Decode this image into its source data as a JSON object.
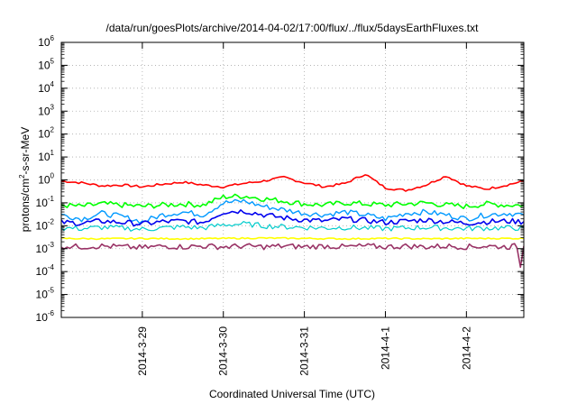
{
  "chart_data": {
    "type": "line",
    "title": "/data/run/goesPlots/archive/2014-04-02/17:00/flux/../flux/5daysEarthFluxes.txt",
    "xlabel": "Coordinated Universal Time (UTC)",
    "ylabel_parts": {
      "a": "protons/cm",
      "exp": "2",
      "b": "-s-sr-MeV"
    },
    "yscale": "log",
    "ylim": [
      1e-06,
      1000000.0
    ],
    "y_ticks": [
      {
        "base": "10",
        "exp": "-6",
        "value": 1e-06
      },
      {
        "base": "10",
        "exp": "-5",
        "value": 1e-05
      },
      {
        "base": "10",
        "exp": "-4",
        "value": 0.0001
      },
      {
        "base": "10",
        "exp": "-3",
        "value": 0.001
      },
      {
        "base": "10",
        "exp": "-2",
        "value": 0.01
      },
      {
        "base": "10",
        "exp": "-1",
        "value": 0.1
      },
      {
        "base": "10",
        "exp": "0",
        "value": 1
      },
      {
        "base": "10",
        "exp": "1",
        "value": 10
      },
      {
        "base": "10",
        "exp": "2",
        "value": 100
      },
      {
        "base": "10",
        "exp": "3",
        "value": 1000
      },
      {
        "base": "10",
        "exp": "4",
        "value": 10000
      },
      {
        "base": "10",
        "exp": "5",
        "value": 100000
      },
      {
        "base": "10",
        "exp": "6",
        "value": 1000000
      }
    ],
    "xlim": [
      "2014-03-28 00:00",
      "2014-04-02 17:00"
    ],
    "x_ticks": [
      {
        "label": "2014-3-29",
        "value": "2014-03-29 00:00"
      },
      {
        "label": "2014-3-30",
        "value": "2014-03-30 00:00"
      },
      {
        "label": "2014-3-31",
        "value": "2014-03-31 00:00"
      },
      {
        "label": "2014-4-1",
        "value": "2014-04-01 00:00"
      },
      {
        "label": "2014-4-2",
        "value": "2014-04-02 00:00"
      }
    ],
    "grid": true,
    "series": [
      {
        "color": "#ff0000",
        "width": 1.6,
        "points": [
          [
            "2014-03-28 00:00",
            0.9
          ],
          [
            "2014-03-28 06:00",
            0.75
          ],
          [
            "2014-03-28 12:00",
            0.55
          ],
          [
            "2014-03-28 18:00",
            0.6
          ],
          [
            "2014-03-29 00:00",
            0.5
          ],
          [
            "2014-03-29 06:00",
            0.65
          ],
          [
            "2014-03-29 12:00",
            0.8
          ],
          [
            "2014-03-29 18:00",
            0.6
          ],
          [
            "2014-03-30 00:00",
            0.5
          ],
          [
            "2014-03-30 06:00",
            0.7
          ],
          [
            "2014-03-30 12:00",
            0.9
          ],
          [
            "2014-03-30 18:00",
            1.3
          ],
          [
            "2014-03-31 00:00",
            0.75
          ],
          [
            "2014-03-31 06:00",
            0.5
          ],
          [
            "2014-03-31 12:00",
            0.7
          ],
          [
            "2014-03-31 18:00",
            1.8
          ],
          [
            "2014-04-01 00:00",
            0.45
          ],
          [
            "2014-04-01 06:00",
            0.35
          ],
          [
            "2014-04-01 12:00",
            0.6
          ],
          [
            "2014-04-01 18:00",
            1.5
          ],
          [
            "2014-04-02 00:00",
            0.55
          ],
          [
            "2014-04-02 06:00",
            0.4
          ],
          [
            "2014-04-02 12:00",
            0.6
          ],
          [
            "2014-04-02 17:00",
            0.9
          ]
        ]
      },
      {
        "color": "#00ff00",
        "width": 1.6,
        "points": [
          [
            "2014-03-28 00:00",
            0.08
          ],
          [
            "2014-03-28 06:00",
            0.07
          ],
          [
            "2014-03-28 12:00",
            0.09
          ],
          [
            "2014-03-28 18:00",
            0.08
          ],
          [
            "2014-03-29 00:00",
            0.07
          ],
          [
            "2014-03-29 06:00",
            0.08
          ],
          [
            "2014-03-29 12:00",
            0.09
          ],
          [
            "2014-03-29 18:00",
            0.08
          ],
          [
            "2014-03-30 00:00",
            0.18
          ],
          [
            "2014-03-30 06:00",
            0.2
          ],
          [
            "2014-03-30 12:00",
            0.15
          ],
          [
            "2014-03-30 18:00",
            0.12
          ],
          [
            "2014-03-31 00:00",
            0.09
          ],
          [
            "2014-03-31 06:00",
            0.08
          ],
          [
            "2014-03-31 12:00",
            0.1
          ],
          [
            "2014-03-31 18:00",
            0.09
          ],
          [
            "2014-04-01 00:00",
            0.08
          ],
          [
            "2014-04-01 06:00",
            0.09
          ],
          [
            "2014-04-01 12:00",
            0.1
          ],
          [
            "2014-04-01 18:00",
            0.08
          ],
          [
            "2014-04-02 00:00",
            0.07
          ],
          [
            "2014-04-02 06:00",
            0.09
          ],
          [
            "2014-04-02 12:00",
            0.08
          ],
          [
            "2014-04-02 17:00",
            0.08
          ]
        ]
      },
      {
        "color": "#0099ff",
        "width": 1.4,
        "points": [
          [
            "2014-03-28 00:00",
            0.03
          ],
          [
            "2014-03-28 06:00",
            0.02
          ],
          [
            "2014-03-28 12:00",
            0.035
          ],
          [
            "2014-03-28 18:00",
            0.025
          ],
          [
            "2014-03-29 00:00",
            0.015
          ],
          [
            "2014-03-29 06:00",
            0.03
          ],
          [
            "2014-03-29 12:00",
            0.04
          ],
          [
            "2014-03-29 18:00",
            0.03
          ],
          [
            "2014-03-30 00:00",
            0.1
          ],
          [
            "2014-03-30 06:00",
            0.12
          ],
          [
            "2014-03-30 12:00",
            0.07
          ],
          [
            "2014-03-30 18:00",
            0.05
          ],
          [
            "2014-03-31 00:00",
            0.035
          ],
          [
            "2014-03-31 06:00",
            0.03
          ],
          [
            "2014-03-31 12:00",
            0.04
          ],
          [
            "2014-03-31 18:00",
            0.03
          ],
          [
            "2014-04-01 00:00",
            0.02
          ],
          [
            "2014-04-01 06:00",
            0.035
          ],
          [
            "2014-04-01 12:00",
            0.04
          ],
          [
            "2014-04-01 18:00",
            0.03
          ],
          [
            "2014-04-02 00:00",
            0.02
          ],
          [
            "2014-04-02 06:00",
            0.03
          ],
          [
            "2014-04-02 12:00",
            0.035
          ],
          [
            "2014-04-02 17:00",
            0.03
          ]
        ]
      },
      {
        "color": "#0000ee",
        "width": 1.6,
        "points": [
          [
            "2014-03-28 00:00",
            0.014
          ],
          [
            "2014-03-28 06:00",
            0.013
          ],
          [
            "2014-03-28 12:00",
            0.016
          ],
          [
            "2014-03-28 18:00",
            0.014
          ],
          [
            "2014-03-29 00:00",
            0.012
          ],
          [
            "2014-03-29 06:00",
            0.015
          ],
          [
            "2014-03-29 12:00",
            0.016
          ],
          [
            "2014-03-29 18:00",
            0.014
          ],
          [
            "2014-03-30 00:00",
            0.04
          ],
          [
            "2014-03-30 06:00",
            0.045
          ],
          [
            "2014-03-30 12:00",
            0.03
          ],
          [
            "2014-03-30 18:00",
            0.022
          ],
          [
            "2014-03-31 00:00",
            0.018
          ],
          [
            "2014-03-31 06:00",
            0.016
          ],
          [
            "2014-03-31 12:00",
            0.02
          ],
          [
            "2014-03-31 18:00",
            0.017
          ],
          [
            "2014-04-01 00:00",
            0.014
          ],
          [
            "2014-04-01 06:00",
            0.016
          ],
          [
            "2014-04-01 12:00",
            0.018
          ],
          [
            "2014-04-01 18:00",
            0.015
          ],
          [
            "2014-04-02 00:00",
            0.013
          ],
          [
            "2014-04-02 06:00",
            0.015
          ],
          [
            "2014-04-02 12:00",
            0.016
          ],
          [
            "2014-04-02 17:00",
            0.015
          ]
        ]
      },
      {
        "color": "#00cccc",
        "width": 1.2,
        "points": [
          [
            "2014-03-28 00:00",
            0.008
          ],
          [
            "2014-03-28 06:00",
            0.0075
          ],
          [
            "2014-03-28 12:00",
            0.0085
          ],
          [
            "2014-03-28 18:00",
            0.008
          ],
          [
            "2014-03-29 00:00",
            0.007
          ],
          [
            "2014-03-29 06:00",
            0.008
          ],
          [
            "2014-03-29 12:00",
            0.009
          ],
          [
            "2014-03-29 18:00",
            0.008
          ],
          [
            "2014-03-30 00:00",
            0.011
          ],
          [
            "2014-03-30 06:00",
            0.012
          ],
          [
            "2014-03-30 12:00",
            0.01
          ],
          [
            "2014-03-30 18:00",
            0.009
          ],
          [
            "2014-03-31 00:00",
            0.0085
          ],
          [
            "2014-03-31 06:00",
            0.008
          ],
          [
            "2014-03-31 12:00",
            0.0085
          ],
          [
            "2014-03-31 18:00",
            0.008
          ],
          [
            "2014-04-01 00:00",
            0.0075
          ],
          [
            "2014-04-01 06:00",
            0.008
          ],
          [
            "2014-04-01 12:00",
            0.0085
          ],
          [
            "2014-04-01 18:00",
            0.008
          ],
          [
            "2014-04-02 00:00",
            0.0075
          ],
          [
            "2014-04-02 06:00",
            0.008
          ],
          [
            "2014-04-02 12:00",
            0.008
          ],
          [
            "2014-04-02 17:00",
            0.008
          ]
        ]
      },
      {
        "color": "#ffff00",
        "width": 1.6,
        "points": [
          [
            "2014-03-28 00:00",
            0.0028
          ],
          [
            "2014-03-28 12:00",
            0.0027
          ],
          [
            "2014-03-29 00:00",
            0.0028
          ],
          [
            "2014-03-29 12:00",
            0.0027
          ],
          [
            "2014-03-30 00:00",
            0.0028
          ],
          [
            "2014-03-30 12:00",
            0.0029
          ],
          [
            "2014-03-31 00:00",
            0.0028
          ],
          [
            "2014-03-31 12:00",
            0.0027
          ],
          [
            "2014-04-01 00:00",
            0.0028
          ],
          [
            "2014-04-01 12:00",
            0.0027
          ],
          [
            "2014-04-02 00:00",
            0.0028
          ],
          [
            "2014-04-02 17:00",
            0.0028
          ]
        ]
      },
      {
        "color": "#993366",
        "width": 1.6,
        "points": [
          [
            "2014-03-28 00:00",
            0.0013
          ],
          [
            "2014-03-28 06:00",
            0.0012
          ],
          [
            "2014-03-28 12:00",
            0.0013
          ],
          [
            "2014-03-28 18:00",
            0.0012
          ],
          [
            "2014-03-29 00:00",
            0.0011
          ],
          [
            "2014-03-29 06:00",
            0.0013
          ],
          [
            "2014-03-29 12:00",
            0.0012
          ],
          [
            "2014-03-29 18:00",
            0.0013
          ],
          [
            "2014-03-30 00:00",
            0.0012
          ],
          [
            "2014-03-30 06:00",
            0.0013
          ],
          [
            "2014-03-30 12:00",
            0.0012
          ],
          [
            "2014-03-30 18:00",
            0.0013
          ],
          [
            "2014-03-31 00:00",
            0.0012
          ],
          [
            "2014-03-31 06:00",
            0.0013
          ],
          [
            "2014-03-31 12:00",
            0.0012
          ],
          [
            "2014-03-31 18:00",
            0.0013
          ],
          [
            "2014-04-01 00:00",
            0.0012
          ],
          [
            "2014-04-01 06:00",
            0.0013
          ],
          [
            "2014-04-01 12:00",
            0.0012
          ],
          [
            "2014-04-01 18:00",
            0.0013
          ],
          [
            "2014-04-02 00:00",
            0.0012
          ],
          [
            "2014-04-02 06:00",
            0.0013
          ],
          [
            "2014-04-02 12:00",
            0.0012
          ],
          [
            "2014-04-02 15:00",
            0.0013
          ],
          [
            "2014-04-02 16:00",
            0.00015
          ],
          [
            "2014-04-02 17:00",
            0.0013
          ]
        ]
      }
    ]
  }
}
